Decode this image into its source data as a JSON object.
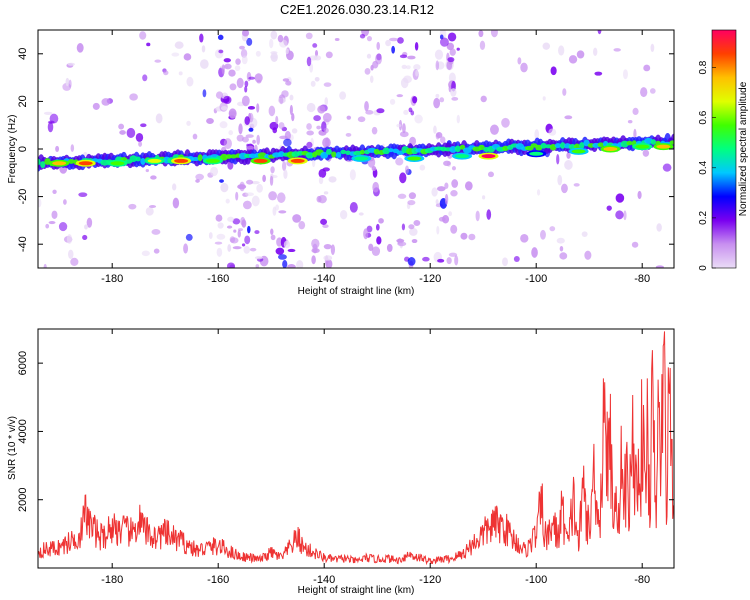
{
  "title": "C2E1.2026.030.23.14.R12",
  "chart_data": [
    {
      "type": "heatmap",
      "name": "spectrogram",
      "xlabel": "Height of straight line (km)",
      "ylabel": "Frequency (Hz)",
      "xlim": [
        -194,
        -74
      ],
      "ylim": [
        -50,
        50
      ],
      "xticks": [
        -180,
        -160,
        -140,
        -120,
        -100,
        -80
      ],
      "yticks": [
        -40,
        -20,
        0,
        20,
        40
      ],
      "ridge": {
        "start": [
          -194,
          -6
        ],
        "end": [
          -74,
          3
        ]
      },
      "hotspots": [
        {
          "x": -190,
          "y": -6,
          "v": 0.8
        },
        {
          "x": -185,
          "y": -6,
          "v": 0.9
        },
        {
          "x": -179,
          "y": -6,
          "v": 0.6
        },
        {
          "x": -172,
          "y": -5,
          "v": 0.7
        },
        {
          "x": -167,
          "y": -5,
          "v": 0.9
        },
        {
          "x": -161,
          "y": -5,
          "v": 0.6
        },
        {
          "x": -152,
          "y": -5,
          "v": 0.85
        },
        {
          "x": -145,
          "y": -5,
          "v": 0.9
        },
        {
          "x": -133,
          "y": -4,
          "v": 0.5
        },
        {
          "x": -123,
          "y": -4,
          "v": 0.55
        },
        {
          "x": -114,
          "y": -3,
          "v": 0.5
        },
        {
          "x": -109,
          "y": -3,
          "v": 0.95
        },
        {
          "x": -100,
          "y": -2,
          "v": 0.45
        },
        {
          "x": -92,
          "y": -1,
          "v": 0.55
        },
        {
          "x": -86,
          "y": 0,
          "v": 0.8
        },
        {
          "x": -80,
          "y": 1,
          "v": 0.6
        },
        {
          "x": -76,
          "y": 1,
          "v": 0.8
        }
      ],
      "noise_columns": [
        -158,
        -154,
        -148,
        -141,
        -131,
        -124,
        -117
      ]
    },
    {
      "type": "colorbar",
      "name": "colorbar",
      "label": "Normalized spectral amplitude",
      "range": [
        0,
        0.95
      ],
      "ticks": [
        0.0,
        0.2,
        0.4,
        0.6,
        0.8
      ],
      "colors": [
        "#eadcf6",
        "#c890f0",
        "#7a00f0",
        "#0000ff",
        "#00c8ff",
        "#00ff80",
        "#40ff00",
        "#e0ff00",
        "#ffc000",
        "#ff4000",
        "#ff0060"
      ]
    },
    {
      "type": "line",
      "name": "snr",
      "xlabel": "Height of straight line (km)",
      "ylabel": "SNR (10 * v/v)",
      "xlim": [
        -194,
        -74
      ],
      "ylim": [
        0,
        7000
      ],
      "xticks": [
        -180,
        -160,
        -140,
        -120,
        -100,
        -80
      ],
      "yticks": [
        2000,
        4000,
        6000
      ],
      "color": "#ee3333",
      "x": [
        -194,
        -192,
        -190,
        -188,
        -186,
        -185,
        -184,
        -182,
        -180,
        -178,
        -176,
        -175,
        -174,
        -172,
        -170,
        -168,
        -166,
        -164,
        -162,
        -160,
        -158,
        -156,
        -154,
        -152,
        -150,
        -148,
        -146,
        -145,
        -144,
        -142,
        -140,
        -138,
        -136,
        -134,
        -132,
        -130,
        -128,
        -126,
        -124,
        -122,
        -120,
        -118,
        -116,
        -114,
        -112,
        -110,
        -108,
        -106,
        -104,
        -102,
        -100,
        -99,
        -98,
        -97,
        -96,
        -95,
        -94,
        -93,
        -92,
        -91,
        -90,
        -89,
        -88,
        -87,
        -86.5,
        -86,
        -85.5,
        -85,
        -84.5,
        -84,
        -83.5,
        -83,
        -82.5,
        -82,
        -81.5,
        -81,
        -80.5,
        -80,
        -79.5,
        -79,
        -78.5,
        -78,
        -77.5,
        -77,
        -76.5,
        -76,
        -75.5,
        -75,
        -74.5,
        -74
      ],
      "values": [
        500,
        550,
        600,
        750,
        1000,
        1600,
        1200,
        900,
        1200,
        1100,
        1000,
        1400,
        1100,
        900,
        1000,
        850,
        700,
        500,
        600,
        650,
        500,
        350,
        300,
        250,
        450,
        300,
        700,
        900,
        600,
        450,
        300,
        250,
        280,
        200,
        300,
        250,
        280,
        220,
        400,
        300,
        200,
        250,
        280,
        400,
        700,
        1000,
        1300,
        1200,
        800,
        500,
        1000,
        1800,
        700,
        1400,
        900,
        1700,
        600,
        2000,
        700,
        2400,
        900,
        3000,
        1200,
        5600,
        2500,
        3800,
        1500,
        2800,
        900,
        3900,
        1400,
        3000,
        1200,
        4200,
        2400,
        3800,
        1600,
        4700,
        1800,
        4100,
        2200,
        5000,
        1300,
        4400,
        2600,
        7000,
        2200,
        4600,
        3600,
        1800
      ]
    }
  ]
}
